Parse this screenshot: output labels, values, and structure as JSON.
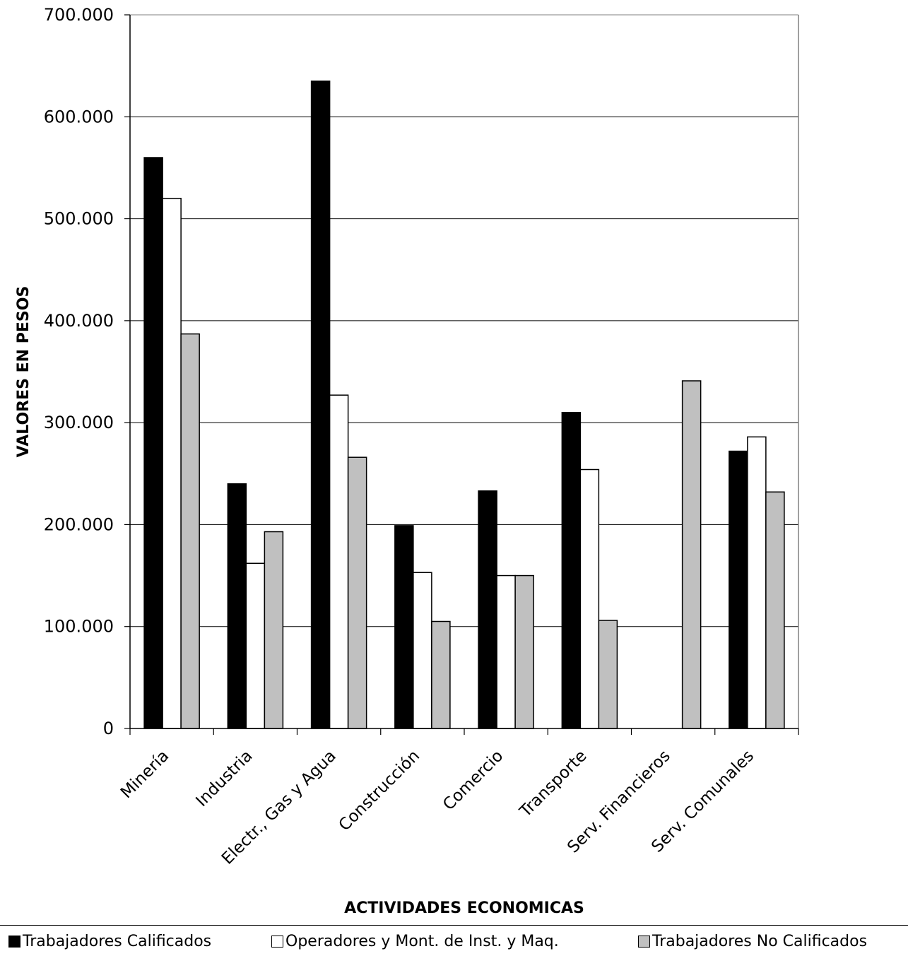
{
  "chart_data": {
    "type": "bar",
    "categories": [
      "Minería",
      "Industria",
      "Electr., Gas y Agua",
      "Construcción",
      "Comercio",
      "Transporte",
      "Serv. Financieros",
      "Serv. Comunales"
    ],
    "series": [
      {
        "name": "Trabajadores Calificados",
        "color": "#000000",
        "values": [
          560000,
          240000,
          635000,
          199000,
          233000,
          310000,
          0,
          272000
        ]
      },
      {
        "name": "Operadores y Mont. de Inst. y Maq.",
        "color": "#ffffff",
        "values": [
          520000,
          162000,
          327000,
          153000,
          150000,
          254000,
          0,
          286000
        ]
      },
      {
        "name": "Trabajadores No Calificados",
        "color": "#c0c0c0",
        "values": [
          387000,
          193000,
          266000,
          105000,
          150000,
          106000,
          341000,
          232000
        ]
      }
    ],
    "yticks": [
      "0",
      "100.000",
      "200.000",
      "300.000",
      "400.000",
      "500.000",
      "600.000",
      "700.000"
    ],
    "ylim": [
      0,
      700000
    ],
    "xlabel": "ACTIVIDADES ECONOMICAS",
    "ylabel": "VALORES EN PESOS",
    "grid": true,
    "legend_position": "bottom"
  }
}
